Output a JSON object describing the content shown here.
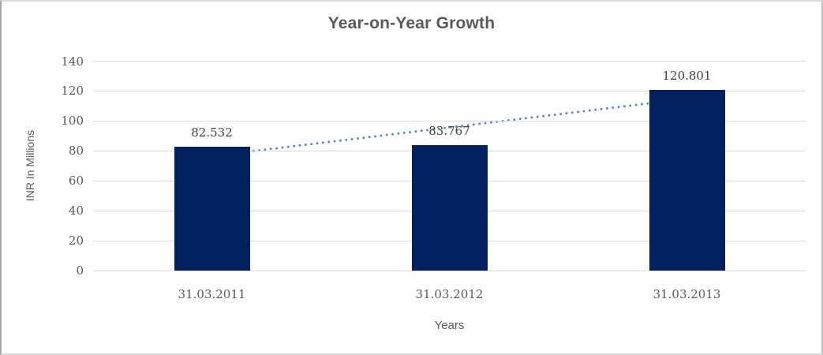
{
  "window": {
    "background": "#ffffff",
    "frame_border_color": "#c0c0c0"
  },
  "chart_data": {
    "type": "bar",
    "title": "Year-on-Year Growth",
    "xlabel": "Years",
    "ylabel": "INR In Millions",
    "categories": [
      "31.03.2011",
      "31.03.2012",
      "31.03.2013"
    ],
    "values": [
      82.532,
      83.767,
      120.801
    ],
    "data_labels": [
      "82.532",
      "83.767",
      "120.801"
    ],
    "ylim": [
      0,
      140
    ],
    "yticks": [
      0,
      20,
      40,
      60,
      80,
      100,
      120,
      140
    ],
    "grid": "horizontal",
    "legend": "none",
    "colors": {
      "bar": "#02215e",
      "gridline": "#d9d9d9",
      "trendline": "#4a86c8",
      "title_text": "#595959",
      "axis_text": "#595959",
      "data_label_text": "#3f3f3f"
    },
    "trendline": {
      "type": "linear",
      "style": "dotted"
    }
  }
}
